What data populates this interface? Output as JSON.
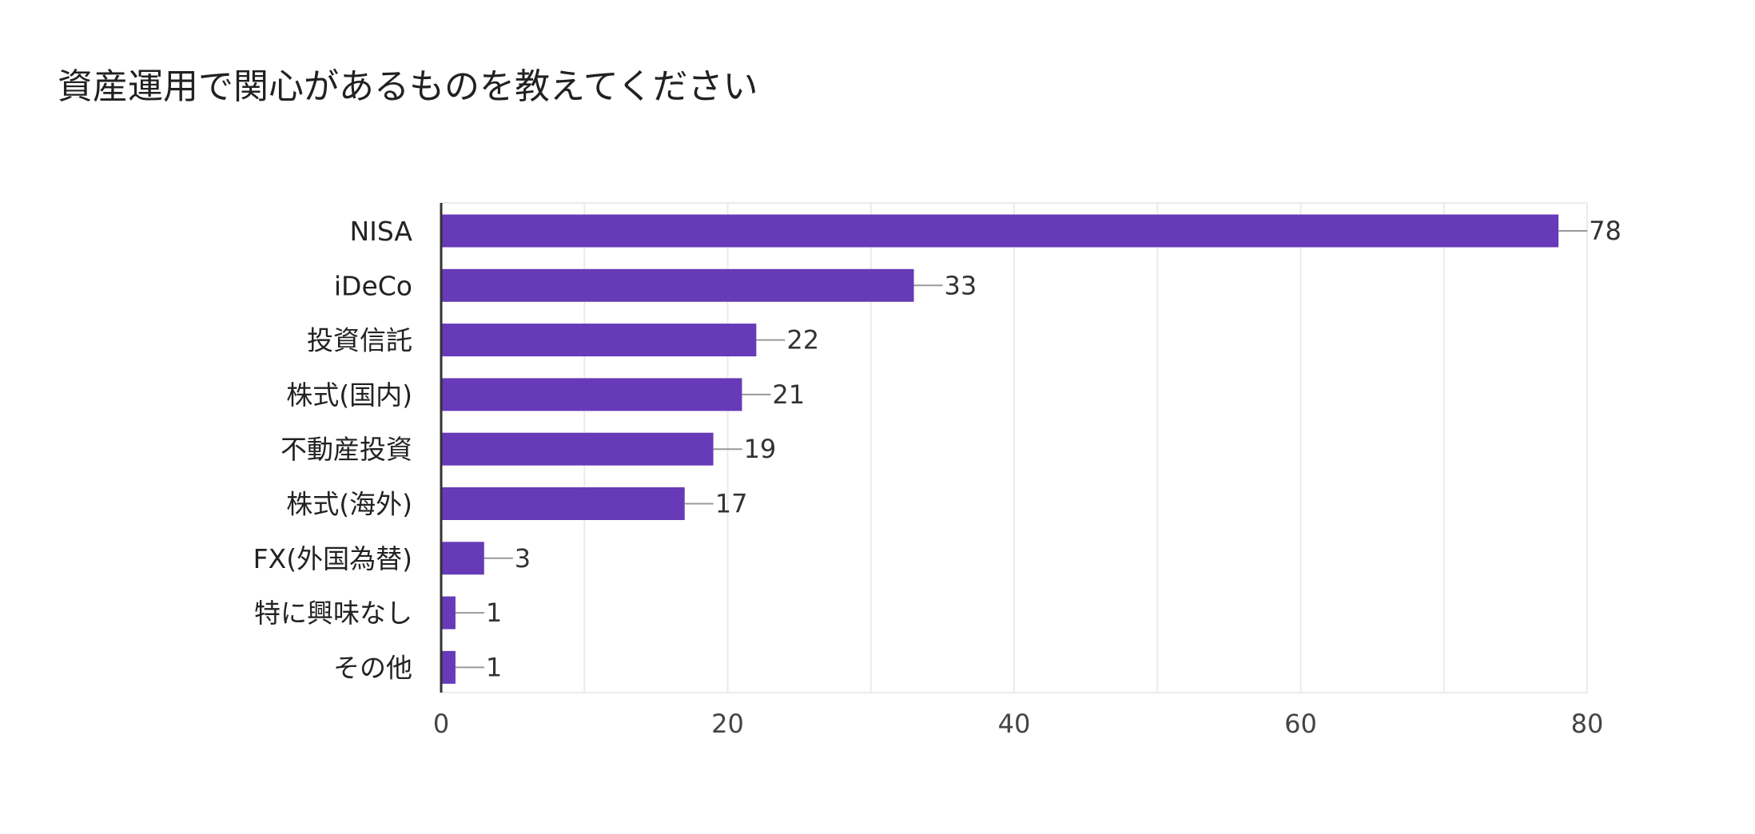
{
  "title": "資産運用で関心があるものを教えてください",
  "colors": {
    "bar": "#673ab7",
    "grid": "#ebebeb",
    "axis": "#333333",
    "leader": "#999999"
  },
  "chart_data": {
    "type": "bar",
    "orientation": "horizontal",
    "title": "資産運用で関心があるものを教えてください",
    "categories": [
      "NISA",
      "iDeCo",
      "投資信託",
      "株式(国内)",
      "不動産投資",
      "株式(海外)",
      "FX(外国為替)",
      "特に興味なし",
      "その他"
    ],
    "values": [
      78,
      33,
      22,
      21,
      19,
      17,
      3,
      1,
      1
    ],
    "xlim": [
      0,
      80
    ],
    "xticks": [
      0,
      20,
      40,
      60,
      80
    ],
    "grid_step": 10,
    "grid": true,
    "xlabel": "",
    "ylabel": ""
  }
}
